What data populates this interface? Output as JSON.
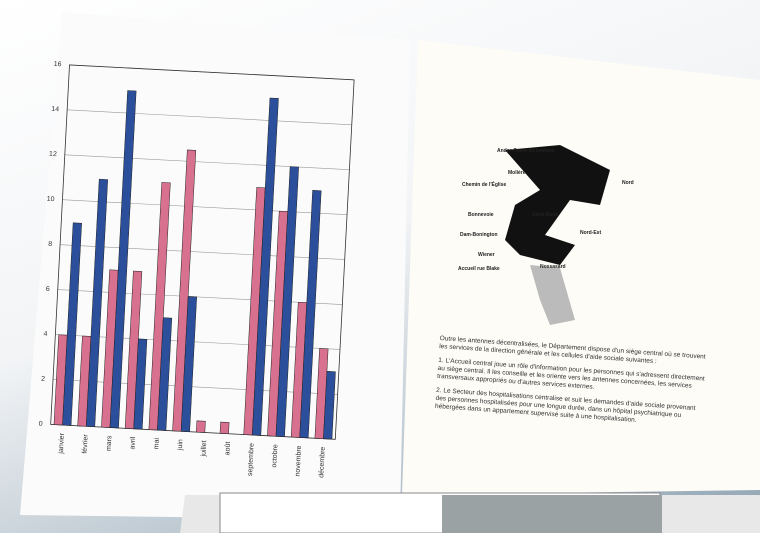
{
  "chart_data": {
    "type": "bar",
    "categories": [
      "janvier",
      "février",
      "mars",
      "avril",
      "mai",
      "juin",
      "juillet",
      "août",
      "septembre",
      "octobre",
      "novembre",
      "décembre"
    ],
    "series": [
      {
        "color": "#d8708f",
        "values": [
          4,
          4,
          7,
          7,
          11,
          12.5,
          0.5,
          0.5,
          11,
          10,
          6,
          4
        ]
      },
      {
        "color": "#2c4f9c",
        "values": [
          9,
          11,
          15,
          4,
          5,
          6,
          0,
          0,
          15,
          12,
          11,
          3
        ]
      }
    ],
    "ylim": [
      0,
      16
    ],
    "yticks": [
      0,
      2,
      4,
      6,
      8,
      10,
      12,
      14,
      16
    ],
    "grid": true
  },
  "right_page": {
    "map_labels": [
      "Ander-Ouest-Bonnevoie",
      "Molière",
      "Chemin de l'Église",
      "Nord",
      "Bonnevoie",
      "Saint-Roch",
      "Dam-Bonington",
      "Nord-Est",
      "Wiener",
      "Accueil rue Blake",
      "Nossasard"
    ],
    "intro": "Outre les antennes décentralisées, le Département dispose d'un siège central où se trouvent les services de la direction générale et les cellules d'aide sociale suivantes :",
    "items": [
      "1. L'Accueil central joue un rôle d'information pour les personnes qui s'adressent directement au siège central. Il les conseille et les oriente vers les antennes concernées, les services transversaux appropriés ou d'autres services externes.",
      "2. Le Secteur des hospitalisations centralise et suit les demandes d'aide sociale provenant des personnes hospitalisées pour une longue durée, dans un hôpital psychiatrique ou hébergées dans un appartement supervisé suite à une hospitalisation."
    ]
  }
}
